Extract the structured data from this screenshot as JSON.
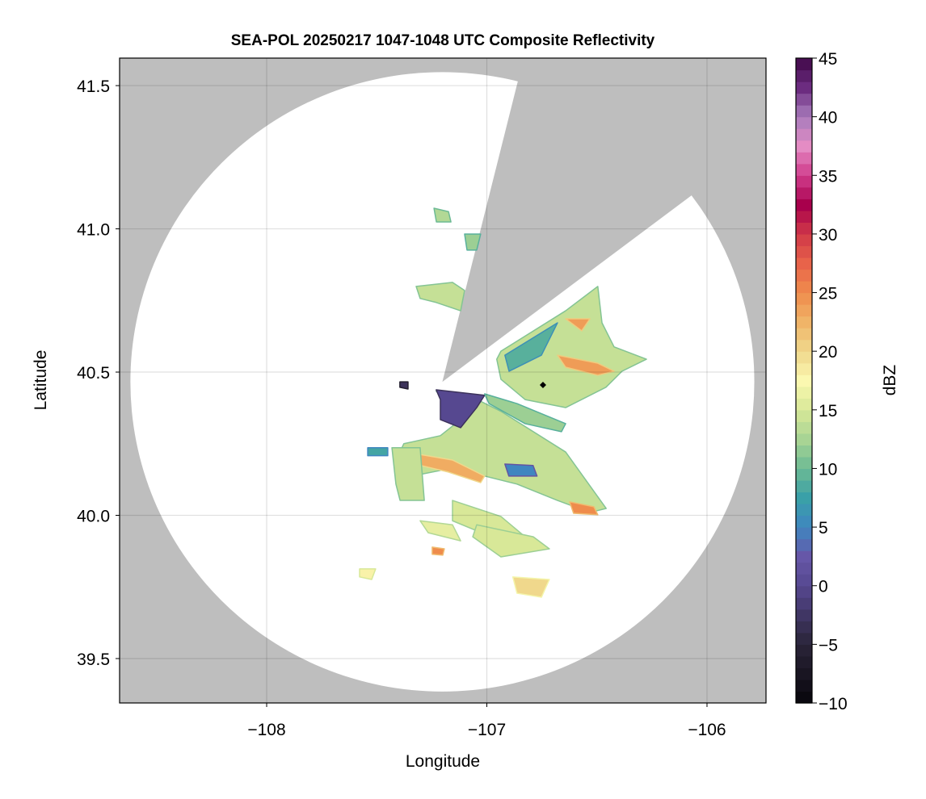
{
  "chart_data": {
    "type": "heatmap",
    "title": "SEA-POL 20250217 1047-1048 UTC Composite Reflectivity",
    "xlabel": "Longitude",
    "ylabel": "Latitude",
    "xlim": [
      -108.668,
      -105.732
    ],
    "ylim": [
      39.345,
      41.596
    ],
    "xticks": [
      -108,
      -107,
      -106
    ],
    "xtick_labels": [
      "−108",
      "−107",
      "−106"
    ],
    "yticks": [
      39.5,
      40.0,
      40.5,
      41.0,
      41.5
    ],
    "ytick_labels": [
      "39.5",
      "40.0",
      "40.5",
      "41.0",
      "41.5"
    ],
    "grid": true,
    "background_color": "#bebebe",
    "radar": {
      "lon": -107.202,
      "lat": 40.466,
      "range_km": 120,
      "blocked_sector_azimuth_deg": [
        14,
        53
      ]
    },
    "marker": {
      "lon": -106.745,
      "lat": 40.455
    },
    "colorbar": {
      "label": "dBZ",
      "range": [
        -10,
        45
      ],
      "ticks": [
        -10,
        -5,
        0,
        5,
        10,
        15,
        20,
        25,
        30,
        35,
        40,
        45
      ],
      "tick_labels": [
        "−10",
        "−5",
        "0",
        "5",
        "10",
        "15",
        "20",
        "25",
        "30",
        "35",
        "40",
        "45"
      ],
      "stops": [
        [
          -10,
          "#08060c"
        ],
        [
          -5,
          "#2a2438"
        ],
        [
          0,
          "#564890"
        ],
        [
          2.5,
          "#6657a8"
        ],
        [
          5,
          "#3f86c0"
        ],
        [
          7.5,
          "#3aa0a8"
        ],
        [
          10,
          "#6cba94"
        ],
        [
          12.5,
          "#a8d494"
        ],
        [
          15,
          "#d8e898"
        ],
        [
          17.5,
          "#fbf8b0"
        ],
        [
          20,
          "#f0d88c"
        ],
        [
          22.5,
          "#f0b468"
        ],
        [
          25,
          "#ef8c4c"
        ],
        [
          27.5,
          "#e8634a"
        ],
        [
          30,
          "#d03848"
        ],
        [
          32.5,
          "#a8004c"
        ],
        [
          35,
          "#d03c8c"
        ],
        [
          37.5,
          "#e48cc4"
        ],
        [
          40,
          "#a87cbc"
        ],
        [
          42.5,
          "#6c2c80"
        ],
        [
          45,
          "#400848"
        ]
      ]
    },
    "echo_regions": [
      {
        "dbz": 14,
        "lonlat": [
          [
            -107.23,
            40.433
          ],
          [
            -107.083,
            40.419
          ],
          [
            -106.936,
            40.363
          ],
          [
            -106.642,
            40.221
          ],
          [
            -106.458,
            40.024
          ],
          [
            -106.532,
            40.01
          ],
          [
            -106.679,
            40.052
          ],
          [
            -106.863,
            40.109
          ],
          [
            -107.156,
            40.165
          ],
          [
            -107.34,
            40.137
          ],
          [
            -107.413,
            40.193
          ],
          [
            -107.377,
            40.25
          ],
          [
            -107.211,
            40.278
          ],
          [
            -107.119,
            40.334
          ],
          [
            -107.101,
            40.376
          ]
        ]
      },
      {
        "dbz": 0,
        "lonlat": [
          [
            -107.23,
            40.438
          ],
          [
            -107.01,
            40.419
          ],
          [
            -107.046,
            40.376
          ],
          [
            -107.119,
            40.306
          ],
          [
            -107.211,
            40.334
          ],
          [
            -107.211,
            40.404
          ]
        ]
      },
      {
        "dbz": 23,
        "lonlat": [
          [
            -107.377,
            40.222
          ],
          [
            -107.156,
            40.193
          ],
          [
            -107.01,
            40.137
          ],
          [
            -107.028,
            40.114
          ],
          [
            -107.175,
            40.151
          ],
          [
            -107.377,
            40.188
          ]
        ]
      },
      {
        "dbz": 5,
        "lonlat": [
          [
            -106.918,
            40.179
          ],
          [
            -106.79,
            40.174
          ],
          [
            -106.772,
            40.137
          ],
          [
            -106.9,
            40.137
          ]
        ]
      },
      {
        "dbz": 25,
        "lonlat": [
          [
            -106.624,
            40.047
          ],
          [
            -106.514,
            40.03
          ],
          [
            -106.496,
            40.002
          ],
          [
            -106.606,
            40.007
          ]
        ]
      },
      {
        "dbz": 12,
        "lonlat": [
          [
            -107.01,
            40.424
          ],
          [
            -106.863,
            40.39
          ],
          [
            -106.642,
            40.32
          ],
          [
            -106.661,
            40.292
          ],
          [
            -106.826,
            40.32
          ],
          [
            -106.99,
            40.39
          ]
        ]
      },
      {
        "dbz": 14,
        "lonlat": [
          [
            -106.936,
            40.573
          ],
          [
            -106.642,
            40.714
          ],
          [
            -106.496,
            40.799
          ],
          [
            -106.477,
            40.672
          ],
          [
            -106.422,
            40.588
          ],
          [
            -106.275,
            40.545
          ],
          [
            -106.386,
            40.503
          ],
          [
            -106.459,
            40.447
          ],
          [
            -106.642,
            40.376
          ],
          [
            -106.826,
            40.404
          ],
          [
            -106.936,
            40.475
          ],
          [
            -106.955,
            40.545
          ]
        ]
      },
      {
        "dbz": 9,
        "lonlat": [
          [
            -106.918,
            40.559
          ],
          [
            -106.679,
            40.672
          ],
          [
            -106.752,
            40.559
          ],
          [
            -106.899,
            40.503
          ]
        ]
      },
      {
        "dbz": 24,
        "lonlat": [
          [
            -106.679,
            40.559
          ],
          [
            -106.496,
            40.531
          ],
          [
            -106.422,
            40.503
          ],
          [
            -106.496,
            40.489
          ],
          [
            -106.642,
            40.517
          ]
        ]
      },
      {
        "dbz": 24,
        "lonlat": [
          [
            -106.642,
            40.686
          ],
          [
            -106.532,
            40.686
          ],
          [
            -106.569,
            40.644
          ]
        ]
      },
      {
        "dbz": 14,
        "lonlat": [
          [
            -107.321,
            40.799
          ],
          [
            -107.156,
            40.813
          ],
          [
            -107.101,
            40.785
          ],
          [
            -107.119,
            40.714
          ],
          [
            -107.23,
            40.743
          ],
          [
            -107.303,
            40.757
          ]
        ]
      },
      {
        "dbz": 13,
        "lonlat": [
          [
            -107.24,
            41.072
          ],
          [
            -107.174,
            41.06
          ],
          [
            -107.163,
            41.024
          ],
          [
            -107.229,
            41.024
          ]
        ]
      },
      {
        "dbz": 12,
        "lonlat": [
          [
            -107.101,
            40.982
          ],
          [
            -107.028,
            40.982
          ],
          [
            -107.046,
            40.926
          ],
          [
            -107.09,
            40.926
          ]
        ]
      },
      {
        "dbz": 15,
        "lonlat": [
          [
            -107.156,
            40.052
          ],
          [
            -106.936,
            39.996
          ],
          [
            -106.826,
            39.925
          ],
          [
            -106.936,
            39.911
          ],
          [
            -107.156,
            39.981
          ]
        ]
      },
      {
        "dbz": 16,
        "lonlat": [
          [
            -107.303,
            39.981
          ],
          [
            -107.156,
            39.967
          ],
          [
            -107.119,
            39.911
          ],
          [
            -107.266,
            39.939
          ]
        ]
      },
      {
        "dbz": 15,
        "lonlat": [
          [
            -107.046,
            39.967
          ],
          [
            -106.789,
            39.925
          ],
          [
            -106.716,
            39.883
          ],
          [
            -106.936,
            39.855
          ],
          [
            -107.064,
            39.925
          ]
        ]
      },
      {
        "dbz": 14,
        "lonlat": [
          [
            -107.431,
            40.236
          ],
          [
            -107.303,
            40.236
          ],
          [
            -107.284,
            40.052
          ],
          [
            -107.394,
            40.052
          ],
          [
            -107.413,
            40.109
          ]
        ]
      },
      {
        "dbz": 8,
        "lonlat": [
          [
            -107.541,
            40.236
          ],
          [
            -107.45,
            40.236
          ],
          [
            -107.45,
            40.208
          ],
          [
            -107.541,
            40.208
          ]
        ]
      },
      {
        "dbz": 18,
        "lonlat": [
          [
            -107.578,
            39.813
          ],
          [
            -107.505,
            39.813
          ],
          [
            -107.523,
            39.776
          ],
          [
            -107.578,
            39.785
          ]
        ]
      },
      {
        "dbz": 20,
        "lonlat": [
          [
            -106.882,
            39.785
          ],
          [
            -106.716,
            39.776
          ],
          [
            -106.752,
            39.714
          ],
          [
            -106.863,
            39.728
          ]
        ]
      },
      {
        "dbz": 25,
        "lonlat": [
          [
            -107.248,
            39.889
          ],
          [
            -107.193,
            39.883
          ],
          [
            -107.2,
            39.861
          ],
          [
            -107.248,
            39.864
          ]
        ]
      },
      {
        "dbz": -3,
        "lonlat": [
          [
            -107.395,
            40.466
          ],
          [
            -107.358,
            40.466
          ],
          [
            -107.358,
            40.441
          ],
          [
            -107.395,
            40.447
          ]
        ]
      }
    ]
  }
}
